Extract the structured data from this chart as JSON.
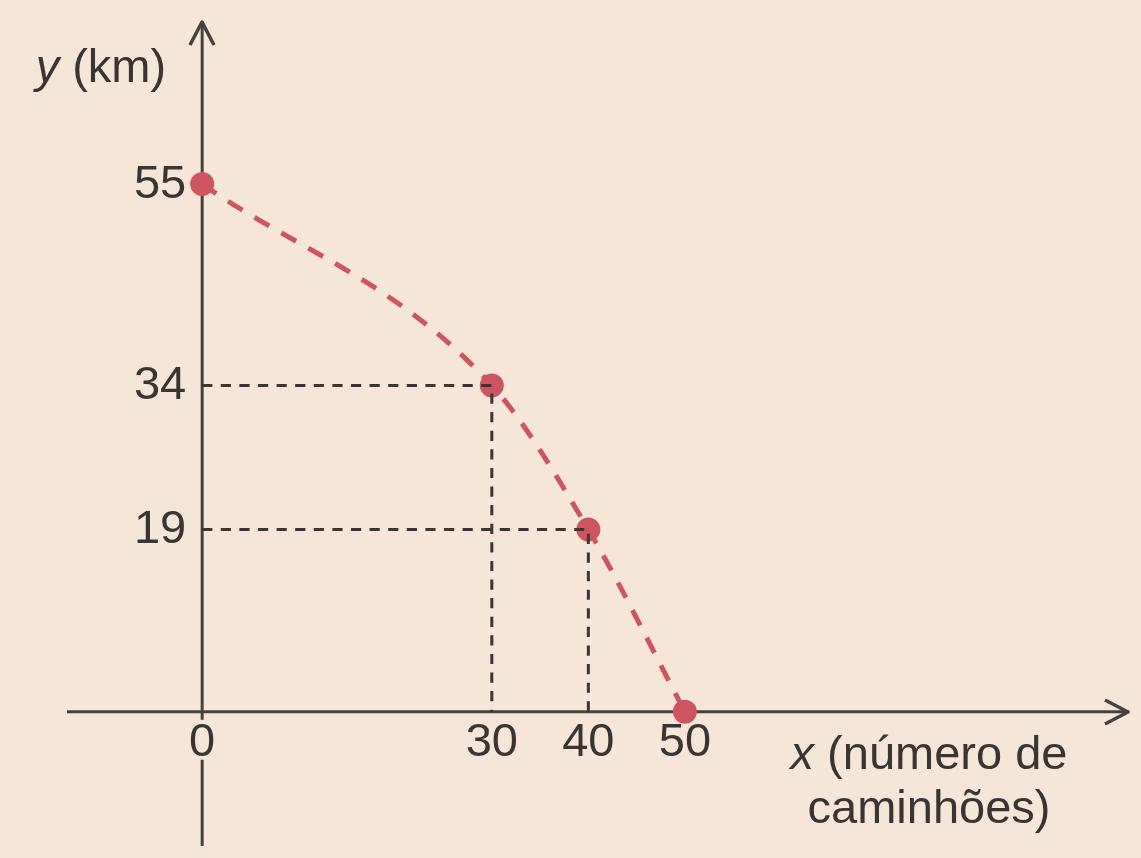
{
  "chart_data": {
    "type": "line",
    "xlabel": "x (número de caminhões)",
    "ylabel": "y (km)",
    "xlim": [
      -14,
      96
    ],
    "ylim": [
      -14,
      72
    ],
    "xticks": [
      0,
      30,
      40,
      50
    ],
    "yticks": [
      19,
      34,
      55
    ],
    "line_style": "dashed",
    "series": [
      {
        "x": [
          0,
          30,
          30
        ],
        "values": [
          34,
          34,
          0
        ],
        "color": "#3b3632",
        "marker": "none"
      },
      {
        "x": [
          0,
          40,
          40
        ],
        "values": [
          19,
          19,
          0
        ],
        "color": "#3b3632",
        "marker": "none"
      },
      {
        "x": [
          0,
          30,
          40,
          50
        ],
        "values": [
          55,
          34,
          19,
          0
        ],
        "color": "#cc5560",
        "marker": "circle"
      }
    ]
  }
}
